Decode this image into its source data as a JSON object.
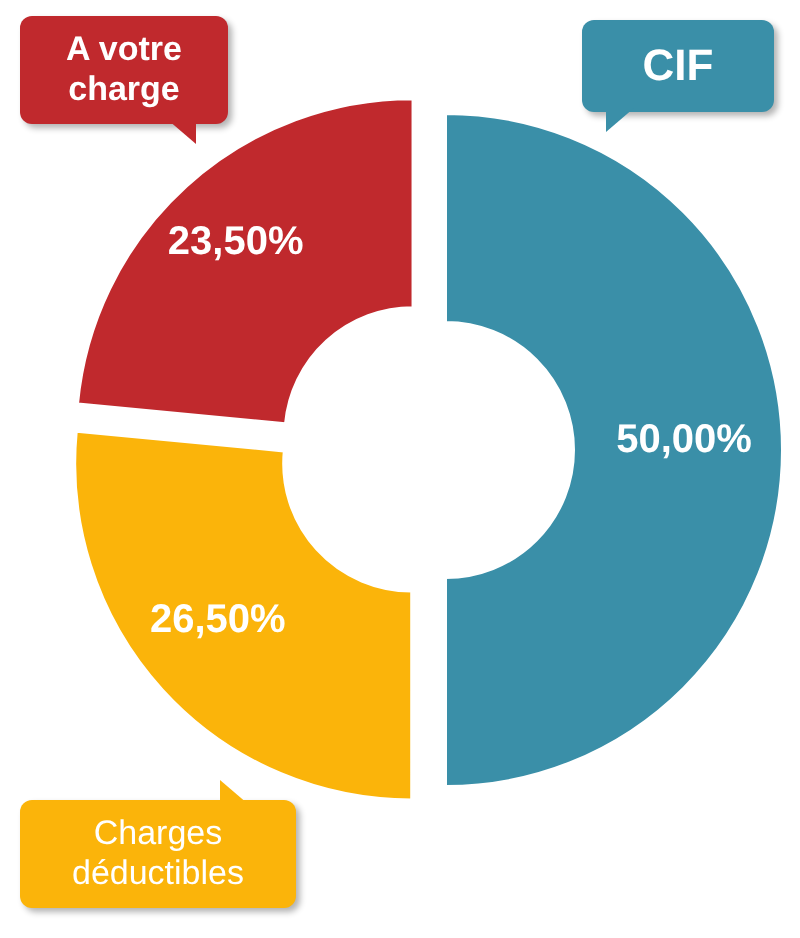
{
  "chart_data": {
    "type": "donut",
    "categories": [
      "CIF",
      "Charges déductibles",
      "A votre charge"
    ],
    "values": [
      50,
      26.5,
      23.5
    ],
    "value_labels": [
      "50,00%",
      "26,50%",
      "23,50%"
    ],
    "colors": [
      "#3a8fa8",
      "#fbb40a",
      "#c0292d"
    ]
  }
}
